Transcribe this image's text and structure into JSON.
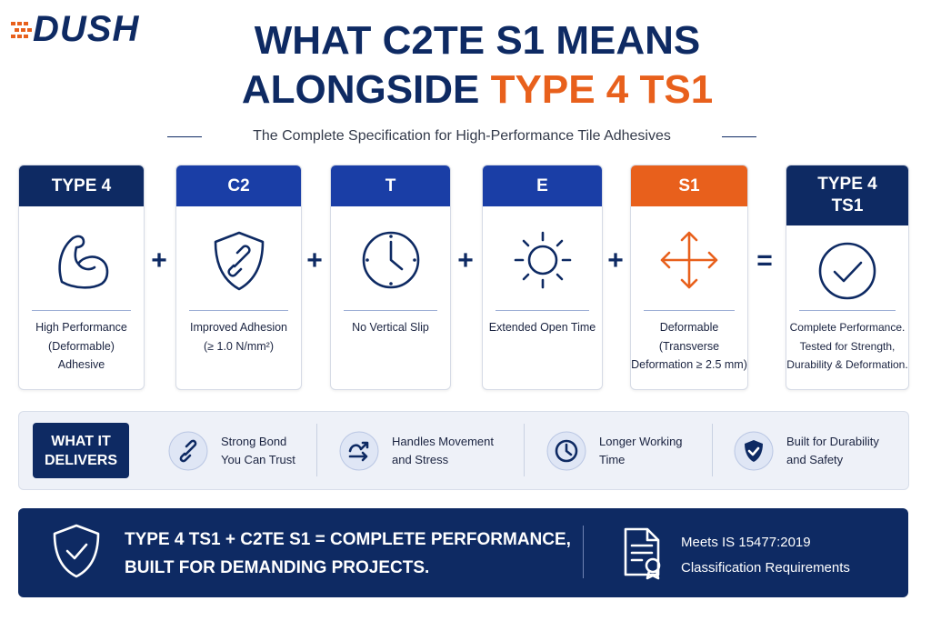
{
  "logo": "DUSH",
  "title": {
    "line1": "WHAT C2TE S1 MEANS",
    "line2_prefix": "ALONGSIDE",
    "line2_highlight": "TYPE 4 TS1"
  },
  "subtitle": "The Complete Specification for High-Performance Tile Adhesives",
  "cards": [
    {
      "code": "TYPE 4",
      "description": [
        "High Performance",
        "(Deformable)",
        "Adhesive"
      ]
    },
    {
      "code": "C2",
      "description": [
        "Improved Adhesion",
        "(≥ 1.0 N/mm²)"
      ]
    },
    {
      "code": "T",
      "description": [
        "No Vertical Slip"
      ]
    },
    {
      "code": "E",
      "description": [
        "Extended Open Time"
      ]
    },
    {
      "code": "S1",
      "description": [
        "Deformable",
        "(Transverse",
        "Deformation ≥ 2.5 mm)"
      ]
    }
  ],
  "operators": [
    "+",
    "+",
    "+",
    "+",
    "="
  ],
  "result": {
    "code": [
      "TYPE 4",
      "TS1"
    ],
    "description": [
      "Complete Performance.",
      "Tested for Strength,",
      "Durability & Deformation."
    ]
  },
  "delivers": {
    "label": [
      "WHAT IT",
      "DELIVERS"
    ],
    "items": [
      [
        "Strong Bond",
        "You Can Trust"
      ],
      [
        "Handles Movement",
        "and Stress"
      ],
      [
        "Longer Working",
        "Time"
      ],
      [
        "Built for Durability",
        "and Safety"
      ]
    ]
  },
  "footer": {
    "headline": [
      "TYPE 4 TS1 + C2TE S1 = COMPLETE PERFORMANCE,",
      "BUILT FOR DEMANDING PROJECTS."
    ],
    "standard": [
      "Meets IS 15477:2019",
      "Classification Requirements"
    ]
  }
}
